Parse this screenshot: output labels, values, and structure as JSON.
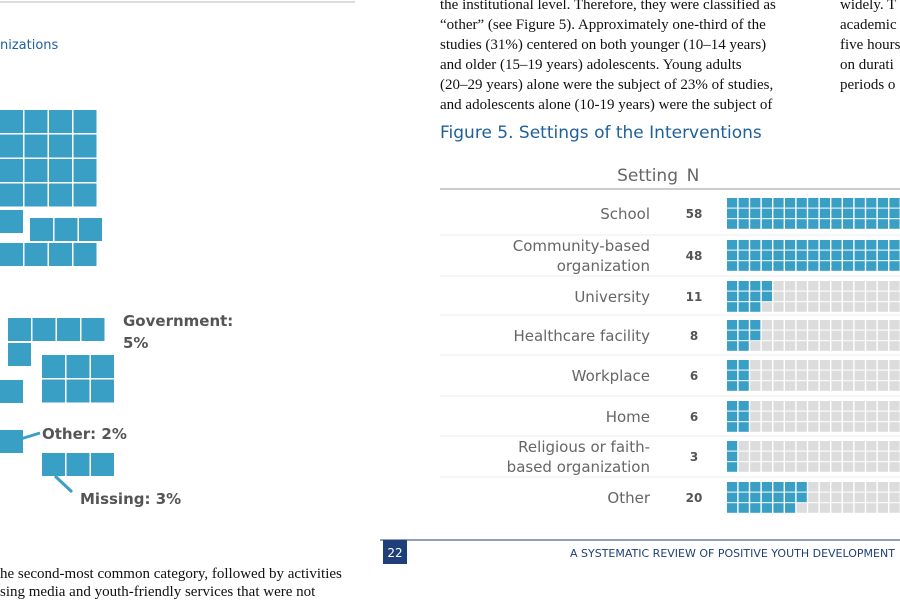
{
  "left_page": {
    "heading": "nizations",
    "labels": [
      {
        "lines": [
          "Government:",
          "5%"
        ]
      },
      {
        "lines": [
          "Other: 2%"
        ]
      },
      {
        "lines": [
          "Missing: 3%"
        ]
      }
    ],
    "body_lines": [
      "he second-most common category, followed by activities",
      "sing media and youth-friendly services that were not"
    ]
  },
  "right_page": {
    "body_lines": [
      "the institutional level. Therefore, they were classified as",
      "“other” (see Figure 5).  Approximately one-third of the",
      "studies (31%) centered on both younger (10–14 years)",
      "and older (15–19 years) adolescents.  Young adults",
      "(20–29 years) alone were the subject of 23% of studies,",
      "and adolescents alone (10-19 years) were the subject of"
    ],
    "side_lines": [
      "widely.  T",
      "academic",
      "five hours",
      "on durati",
      "periods o"
    ],
    "figure": {
      "title": "Figure 5. Settings of the Interventions",
      "headers": [
        "Setting",
        "N"
      ],
      "rows": [
        {
          "setting": [
            "School"
          ],
          "n": 58
        },
        {
          "setting": [
            "Community-based",
            "organization"
          ],
          "n": 48
        },
        {
          "setting": [
            "University"
          ],
          "n": 11
        },
        {
          "setting": [
            "Healthcare facility"
          ],
          "n": 8
        },
        {
          "setting": [
            "Workplace"
          ],
          "n": 6
        },
        {
          "setting": [
            "Home"
          ],
          "n": 6
        },
        {
          "setting": [
            "Religious or faith-",
            "based organization"
          ],
          "n": 3
        },
        {
          "setting": [
            "Other"
          ],
          "n": 20
        }
      ]
    },
    "footer": {
      "page_number": "22",
      "running_title": "A SYSTEMATIC REVIEW OF POSITIVE YOUTH DEVELOPMENT"
    }
  }
}
